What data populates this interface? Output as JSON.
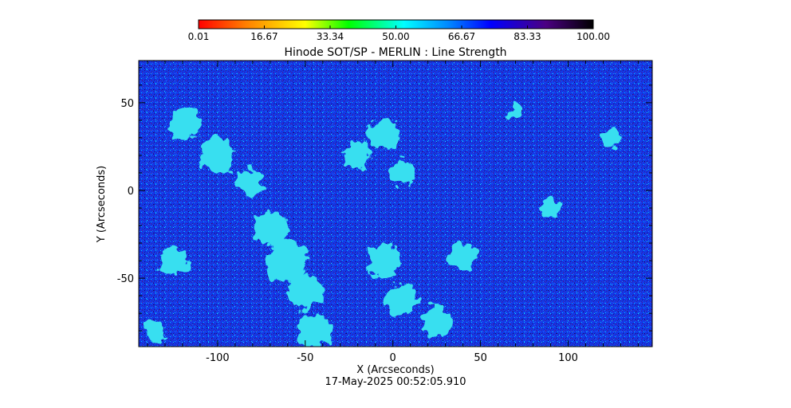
{
  "chart_data": {
    "type": "heatmap",
    "title": "Hinode SOT/SP - MERLIN : Line Strength",
    "xlabel": "X (Arcseconds)",
    "ylabel": "Y (Arcseconds)",
    "xlim": [
      -145,
      148
    ],
    "ylim": [
      -89,
      74
    ],
    "x_ticks": [
      -100,
      -50,
      0,
      50,
      100
    ],
    "x_tick_labels": [
      "-100",
      "-50",
      "0",
      "50",
      "100"
    ],
    "y_ticks": [
      50,
      0,
      -50
    ],
    "y_tick_labels": [
      "50",
      "0",
      "-50"
    ],
    "colorbar": {
      "range": [
        0.01,
        100.0
      ],
      "ticks": [
        0.01,
        16.67,
        33.34,
        50.0,
        66.67,
        83.33,
        100.0
      ],
      "tick_labels": [
        "0.01",
        "16.67",
        "33.34",
        "50.00",
        "66.67",
        "83.33",
        "100.00"
      ],
      "colormap": "rainbow",
      "colors": [
        "#ff0000",
        "#ff7f00",
        "#ffff00",
        "#00ff00",
        "#00ffff",
        "#0080ff",
        "#0000ff",
        "#4b0082",
        "#000000"
      ]
    },
    "grid": false,
    "dominant_color": "#1438e6",
    "feature_color": "#38dff0",
    "dark_speckle_color": "#3a1a8c",
    "network_features": [
      {
        "x": -118,
        "y": 38,
        "r": 9
      },
      {
        "x": -100,
        "y": 20,
        "r": 10
      },
      {
        "x": -82,
        "y": 5,
        "r": 8
      },
      {
        "x": -70,
        "y": -22,
        "r": 10
      },
      {
        "x": -60,
        "y": -40,
        "r": 12
      },
      {
        "x": -50,
        "y": -58,
        "r": 10
      },
      {
        "x": -45,
        "y": -80,
        "r": 10
      },
      {
        "x": -20,
        "y": 20,
        "r": 8
      },
      {
        "x": -5,
        "y": 32,
        "r": 9
      },
      {
        "x": 5,
        "y": 10,
        "r": 7
      },
      {
        "x": -5,
        "y": -40,
        "r": 10
      },
      {
        "x": 5,
        "y": -62,
        "r": 9
      },
      {
        "x": 25,
        "y": -75,
        "r": 9
      },
      {
        "x": 40,
        "y": -38,
        "r": 8
      },
      {
        "x": -125,
        "y": -40,
        "r": 8
      },
      {
        "x": -135,
        "y": -80,
        "r": 6
      },
      {
        "x": 90,
        "y": -10,
        "r": 5
      },
      {
        "x": 125,
        "y": 30,
        "r": 5
      },
      {
        "x": 70,
        "y": 45,
        "r": 4
      }
    ]
  },
  "timestamp": "17-May-2025 00:52:05.910"
}
